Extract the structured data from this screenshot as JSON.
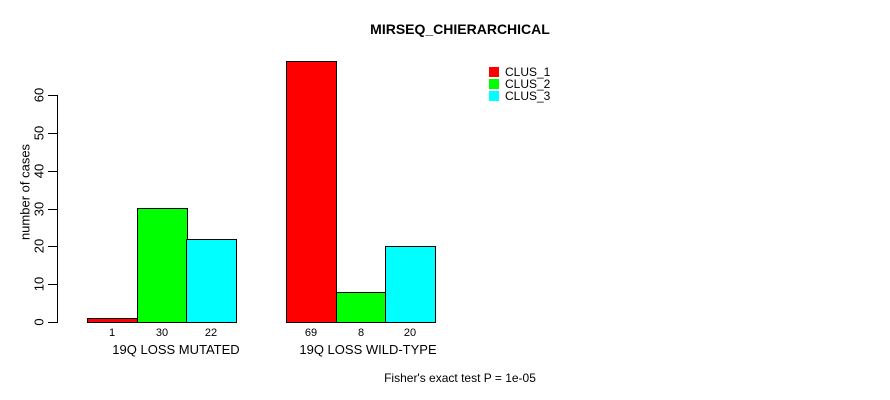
{
  "chart_data": {
    "type": "bar",
    "title": "MIRSEQ_CHIERARCHICAL",
    "ylabel": "number of cases",
    "xlabel": "",
    "categories": [
      "19Q LOSS MUTATED",
      "19Q LOSS WILD-TYPE"
    ],
    "series": [
      {
        "name": "CLUS_1",
        "color": "#ff0000",
        "values": [
          1,
          69
        ]
      },
      {
        "name": "CLUS_2",
        "color": "#00ff00",
        "values": [
          30,
          8
        ]
      },
      {
        "name": "CLUS_3",
        "color": "#00ffff",
        "values": [
          22,
          20
        ]
      }
    ],
    "yticks": [
      0,
      10,
      20,
      30,
      40,
      50,
      60
    ],
    "ylim": [
      0,
      69
    ],
    "grid": false,
    "legend_position": "top-right",
    "legend_entries": [
      "CLUS_1",
      "CLUS_2",
      "CLUS_3"
    ],
    "bar_outline_color": "#000000",
    "annotation": "Fisher's exact test P = 1e-05"
  }
}
